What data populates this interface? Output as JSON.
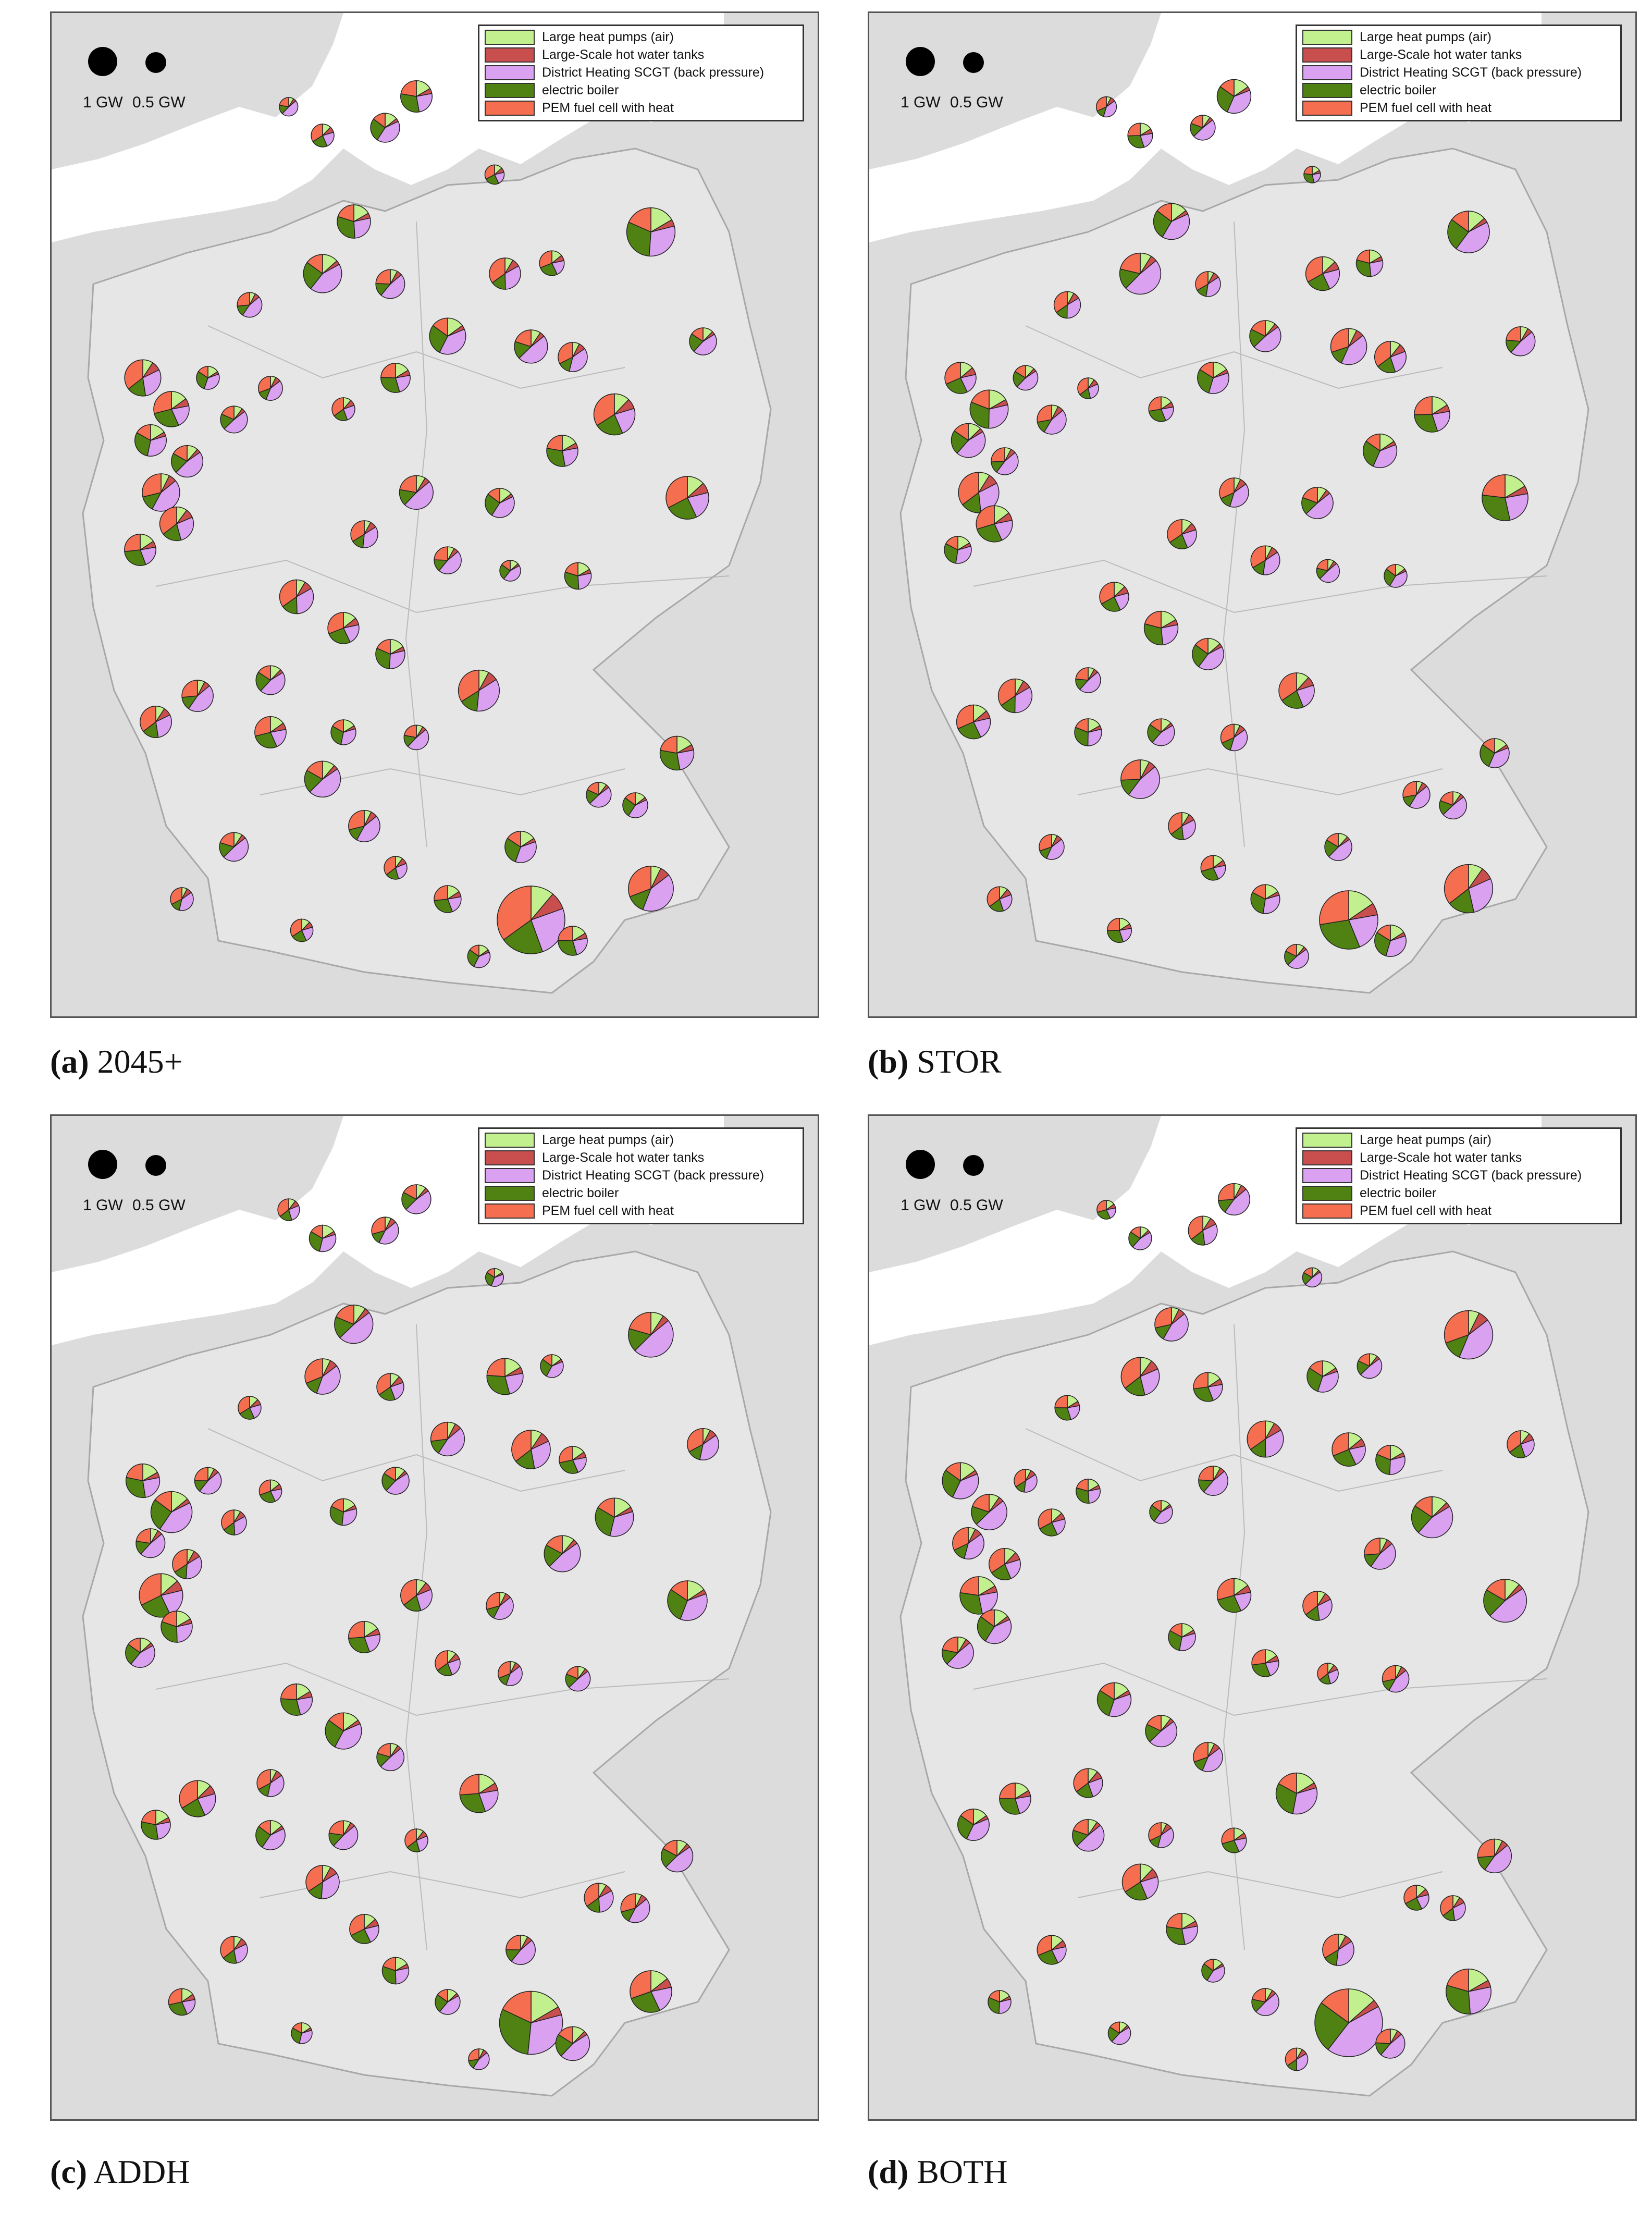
{
  "legend_items": [
    {
      "label": "Large heat pumps (air)",
      "color": "#c3f08e"
    },
    {
      "label": "Large-Scale hot water tanks",
      "color": "#c94f4f"
    },
    {
      "label": "District Heating SCGT (back pressure)",
      "color": "#d9a1ef"
    },
    {
      "label": "electric boiler",
      "color": "#4f8212"
    },
    {
      "label": "PEM fuel cell with heat",
      "color": "#f66e50"
    }
  ],
  "scale": {
    "large_label": "1 GW",
    "small_label": "0.5 GW"
  },
  "map_colors": {
    "background": "#dcdcdc",
    "land": "#e6e6e6",
    "sea": "#ffffff",
    "border": "#a8a8a8"
  },
  "panels": [
    {
      "letter": "(a)",
      "name": "2045+"
    },
    {
      "letter": "(b)",
      "name": "STOR"
    },
    {
      "letter": "(c)",
      "name": "ADDH"
    },
    {
      "letter": "(d)",
      "name": "BOTH"
    }
  ]
}
